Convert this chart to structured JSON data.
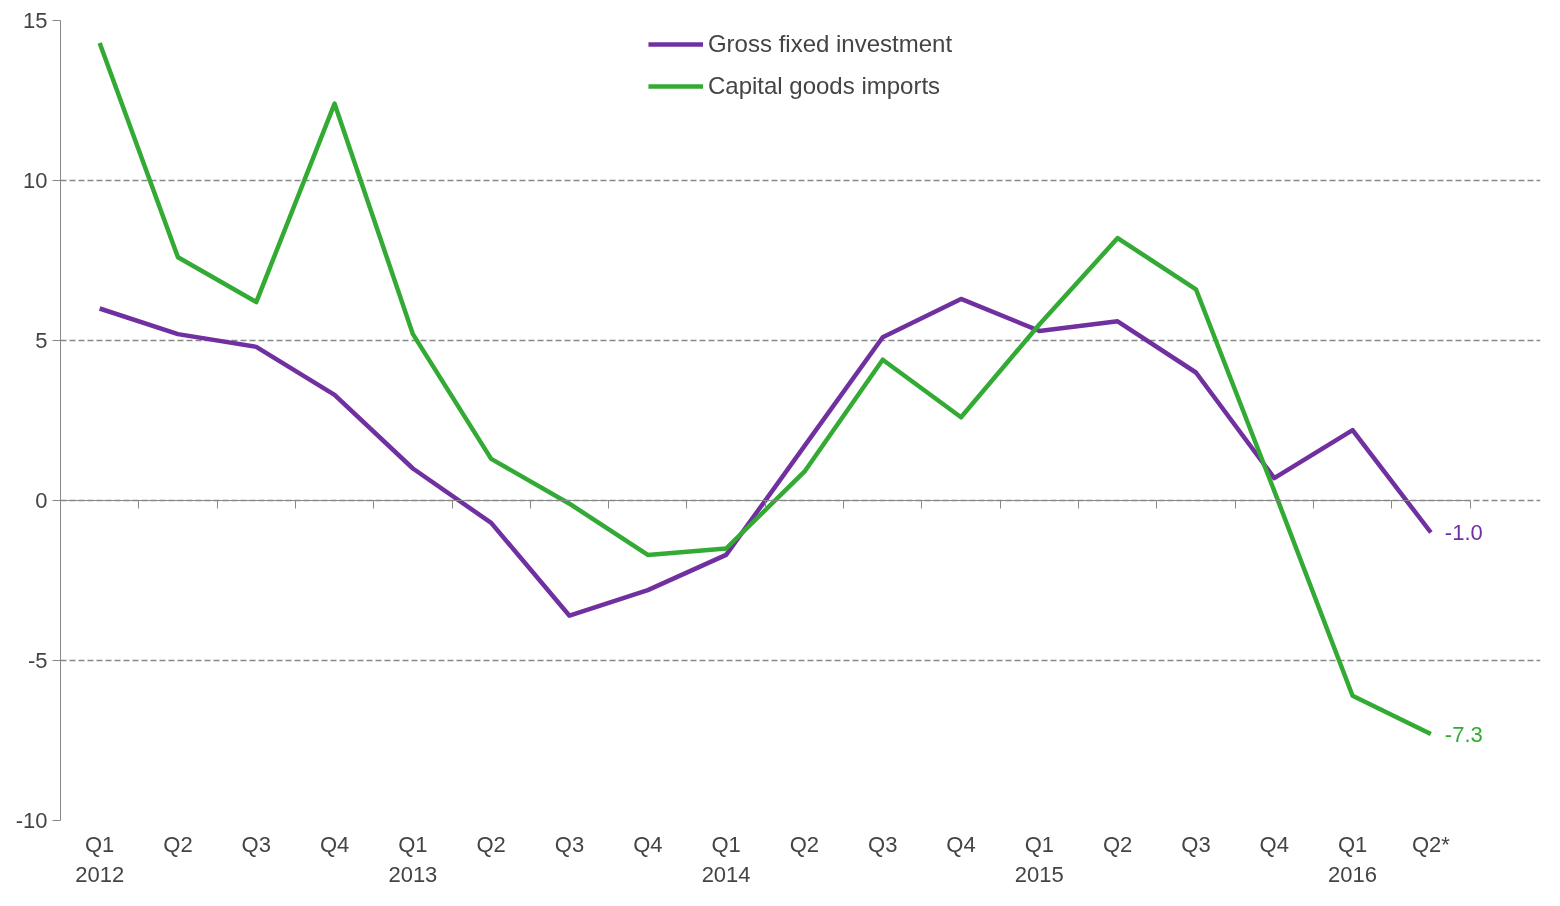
{
  "chart_data": {
    "type": "line",
    "categories": [
      "Q1\n2012",
      "Q2",
      "Q3",
      "Q4",
      "Q1\n2013",
      "Q2",
      "Q3",
      "Q4",
      "Q1\n2014",
      "Q2",
      "Q3",
      "Q4",
      "Q1\n2015",
      "Q2",
      "Q3",
      "Q4",
      "Q1\n2016",
      "Q2*"
    ],
    "series": [
      {
        "name": "Gross fixed investment",
        "color": "#7030a0",
        "values": [
          6.0,
          5.2,
          4.8,
          3.3,
          1.0,
          -0.7,
          -3.6,
          -2.8,
          -1.7,
          1.7,
          5.1,
          6.3,
          5.3,
          5.6,
          4.0,
          0.7,
          2.2,
          -1.0
        ],
        "value_labels": [
          null,
          null,
          null,
          null,
          null,
          null,
          null,
          null,
          null,
          null,
          null,
          null,
          null,
          null,
          null,
          null,
          null,
          "-1.0"
        ]
      },
      {
        "name": "Capital goods imports",
        "color": "#33aa33",
        "values": [
          14.3,
          7.6,
          6.2,
          12.4,
          5.2,
          1.3,
          -0.1,
          -1.7,
          -1.5,
          0.9,
          4.4,
          2.6,
          5.5,
          8.2,
          6.6,
          0.3,
          -6.1,
          -7.3
        ],
        "value_labels": [
          null,
          null,
          null,
          null,
          null,
          null,
          null,
          null,
          null,
          null,
          null,
          null,
          null,
          null,
          null,
          null,
          null,
          "-7.3"
        ]
      }
    ],
    "ylim": [
      -10,
      15
    ],
    "yticks": [
      -10,
      -5,
      0,
      5,
      10,
      15
    ],
    "grid": "y",
    "legend": "top",
    "marker": "none",
    "line_style": "solid"
  }
}
